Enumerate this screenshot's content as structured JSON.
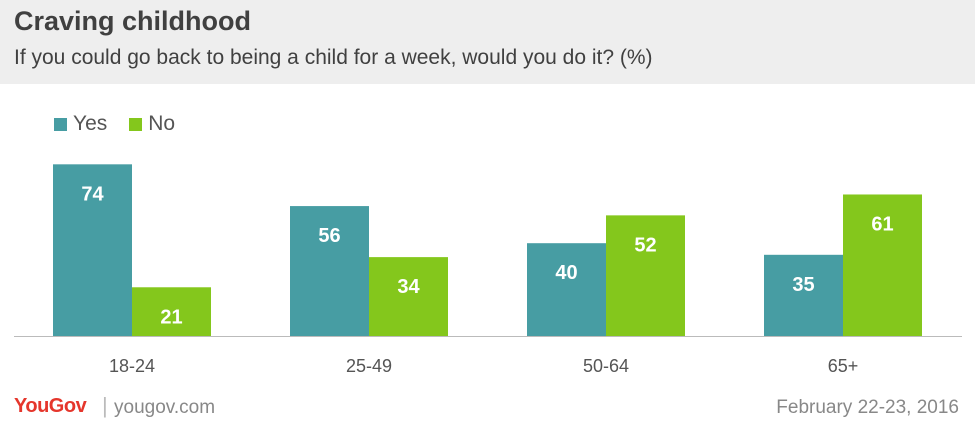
{
  "header": {
    "title": "Craving childhood",
    "subtitle": "If you could go back to being a child for a week, would you do it? (%)"
  },
  "footer": {
    "brand": "YouGov",
    "separator": "|",
    "site": "yougov.com",
    "date": "February 22-23, 2016"
  },
  "colors": {
    "yes": "#479da3",
    "no": "#84c71c",
    "axis": "#bbbbbb",
    "label_text": "#ffffff",
    "tick_text": "#555555",
    "brand": "#e5362c"
  },
  "chart_data": {
    "type": "bar",
    "title": "Craving childhood",
    "subtitle": "If you could go back to being a child for a week, would you do it? (%)",
    "categories": [
      "18-24",
      "25-49",
      "50-64",
      "65+"
    ],
    "series": [
      {
        "name": "Yes",
        "values": [
          74,
          56,
          40,
          35
        ]
      },
      {
        "name": "No",
        "values": [
          21,
          34,
          52,
          61
        ]
      }
    ],
    "ylim": [
      0,
      75
    ],
    "grid": false,
    "legend": "top-left",
    "data_labels": true
  }
}
